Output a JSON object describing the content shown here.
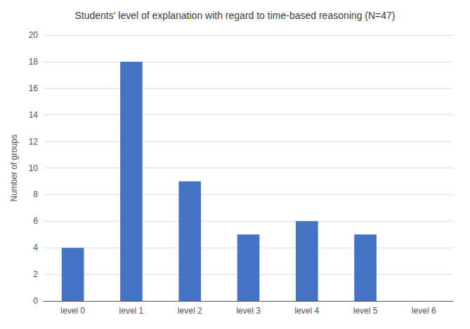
{
  "chart_data": {
    "type": "bar",
    "title": "Students' level of explanation with regard to time-based reasoning (N=47)",
    "ylabel": "Number of groups",
    "categories": [
      "level 0",
      "level 1",
      "level 2",
      "level 3",
      "level 4",
      "level 5",
      "level 6"
    ],
    "values": [
      4,
      18,
      9,
      5,
      6,
      5,
      0
    ],
    "color": "#4472C4",
    "ylim": [
      0,
      20
    ],
    "yticks": [
      0,
      2,
      4,
      6,
      8,
      10,
      12,
      14,
      16,
      18,
      20
    ],
    "grid": true
  }
}
